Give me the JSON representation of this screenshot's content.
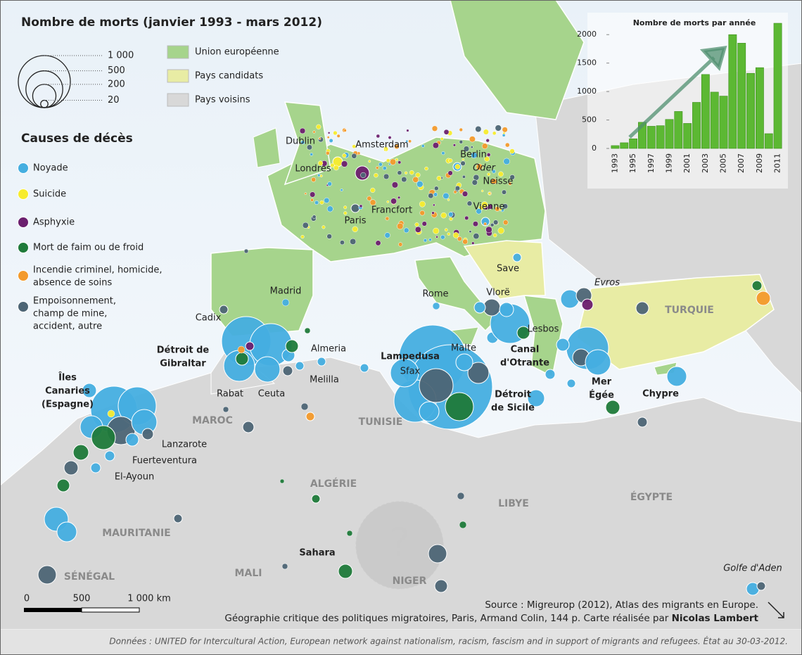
{
  "title": "Nombre de morts (janvier 1993 - mars 2012)",
  "size_legend": [
    {
      "value": 1000,
      "label": "1 000"
    },
    {
      "value": 500,
      "label": "500"
    },
    {
      "value": 200,
      "label": "200"
    },
    {
      "value": 20,
      "label": "20"
    }
  ],
  "zones": [
    {
      "name": "Union européenne",
      "color": "#a6d48c"
    },
    {
      "name": "Pays candidats",
      "color": "#e8eca4"
    },
    {
      "name": "Pays voisins",
      "color": "#d8d8d8"
    }
  ],
  "causes_title": "Causes de décès",
  "causes": [
    {
      "name": [
        "Noyade"
      ],
      "color": "#45aee0"
    },
    {
      "name": [
        "Suicide"
      ],
      "color": "#f7ec2e"
    },
    {
      "name": [
        "Asphyxie"
      ],
      "color": "#6b1f6e"
    },
    {
      "name": [
        "Mort de faim ou de froid"
      ],
      "color": "#1f7a3a"
    },
    {
      "name": [
        "Incendie criminel, homicide,",
        "absence de soins"
      ],
      "color": "#f39a2c"
    },
    {
      "name": [
        "Empoisonnement,",
        "champ de mine,",
        "accident, autre"
      ],
      "color": "#4d6575"
    }
  ],
  "places": [
    {
      "label": [
        "Dublin"
      ],
      "style": "normal"
    },
    {
      "label": [
        "Londres"
      ],
      "style": "normal"
    },
    {
      "label": [
        "Amsterdam"
      ],
      "style": "normal"
    },
    {
      "label": [
        "Berlin"
      ],
      "style": "normal"
    },
    {
      "label": [
        "Oder"
      ],
      "style": "italic"
    },
    {
      "label": [
        "Neisse"
      ],
      "style": "normal"
    },
    {
      "label": [
        "Paris"
      ],
      "style": "normal"
    },
    {
      "label": [
        "Francfort"
      ],
      "style": "normal"
    },
    {
      "label": [
        "Vienne"
      ],
      "style": "normal"
    },
    {
      "label": [
        "Save"
      ],
      "style": "normal"
    },
    {
      "label": [
        "Madrid"
      ],
      "style": "normal"
    },
    {
      "label": [
        "Rome"
      ],
      "style": "normal"
    },
    {
      "label": [
        "Vlorë"
      ],
      "style": "normal"
    },
    {
      "label": [
        "Evros"
      ],
      "style": "italic"
    },
    {
      "label": [
        "Cadix"
      ],
      "style": "normal"
    },
    {
      "label": [
        "Almeria"
      ],
      "style": "normal"
    },
    {
      "label": [
        "Melilla"
      ],
      "style": "normal"
    },
    {
      "label": [
        "Rabat"
      ],
      "style": "normal"
    },
    {
      "label": [
        "Ceuta"
      ],
      "style": "normal"
    },
    {
      "label": [
        "Lanzarote"
      ],
      "style": "normal"
    },
    {
      "label": [
        "Fuerteventura"
      ],
      "style": "normal"
    },
    {
      "label": [
        "El-Ayoun"
      ],
      "style": "normal"
    },
    {
      "label": [
        "Sahara"
      ],
      "style": "bold"
    },
    {
      "label": [
        "Golfe d'Aden"
      ],
      "style": "italic"
    },
    {
      "label": [
        "Lesbos"
      ],
      "style": "normal"
    },
    {
      "label": [
        "Détroit de",
        "Gibraltar"
      ],
      "style": "bold"
    },
    {
      "label": [
        "Îles",
        "Canaries",
        "(Espagne)"
      ],
      "style": "bold"
    },
    {
      "label": [
        "Lampedusa"
      ],
      "style": "bold"
    },
    {
      "label": [
        "Sfax"
      ],
      "style": "normal"
    },
    {
      "label": [
        "Malte"
      ],
      "style": "normal"
    },
    {
      "label": [
        "Canal",
        "d'Otrante"
      ],
      "style": "bold"
    },
    {
      "label": [
        "Détroit",
        "de Sicile"
      ],
      "style": "bold"
    },
    {
      "label": [
        "Mer",
        "Égée"
      ],
      "style": "bold"
    },
    {
      "label": [
        "Chypre"
      ],
      "style": "bold"
    }
  ],
  "countries": [
    "MAROC",
    "TUNISIE",
    "ALGÉRIE",
    "LIBYE",
    "ÉGYPTE",
    "MAURITANIE",
    "MALI",
    "NIGER",
    "SÉNÉGAL",
    "TURQUIE"
  ],
  "unknown_marker": "?",
  "scale_bar": [
    "0",
    "500",
    "1 000 km"
  ],
  "source": {
    "line1": "Source : Migreurop (2012), Atlas des migrants en Europe.",
    "line2": "Géographie critique des politiques migratoires, Paris, Armand Colin, 144 p. Carte réalisée par ",
    "author": "Nicolas Lambert"
  },
  "footer": "Données :  UNITED for Intercultural Action, European network against nationalism, racism, fascism and in support of migrants and refugees. État au 30-03-2012.",
  "chart_data": {
    "type": "bar",
    "title": "Nombre de morts par année",
    "categories": [
      "1993",
      null,
      "1995",
      null,
      "1997",
      null,
      "1999",
      null,
      "2001",
      null,
      "2003",
      null,
      "2005",
      null,
      "2007",
      null,
      "2009",
      null,
      "2011"
    ],
    "values": [
      50,
      100,
      170,
      460,
      390,
      400,
      510,
      650,
      440,
      810,
      1300,
      990,
      920,
      2000,
      1850,
      1320,
      1420,
      260,
      2200
    ],
    "color": "#5cb833",
    "ylim": [
      0,
      2250
    ],
    "yticks": [
      0,
      500,
      1000,
      1500,
      2000
    ]
  }
}
